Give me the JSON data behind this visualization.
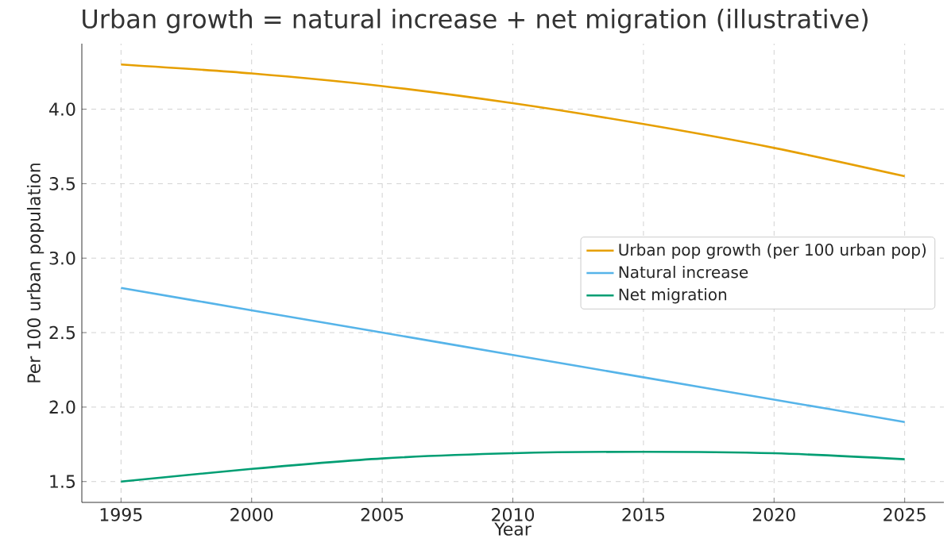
{
  "chart_data": {
    "type": "line",
    "title": "Urban growth = natural increase + net migration (illustrative)",
    "xlabel": "Year",
    "ylabel": "Per 100 urban population",
    "x": [
      1995,
      2000,
      2005,
      2010,
      2015,
      2020,
      2025
    ],
    "series": [
      {
        "name": "Urban pop growth (per 100 urban pop)",
        "color": "#e69f00",
        "values": [
          4.3,
          4.24,
          4.155,
          4.04,
          3.9,
          3.74,
          3.55
        ]
      },
      {
        "name": "Natural increase",
        "color": "#56b4e9",
        "values": [
          2.8,
          2.65,
          2.5,
          2.35,
          2.2,
          2.05,
          1.9
        ]
      },
      {
        "name": "Net migration",
        "color": "#009e73",
        "values": [
          1.5,
          1.585,
          1.655,
          1.69,
          1.7,
          1.69,
          1.65
        ]
      }
    ],
    "xlim": [
      1993.5,
      2026.5
    ],
    "ylim": [
      1.36,
      4.44
    ],
    "xticks": [
      1995,
      2000,
      2005,
      2010,
      2015,
      2020,
      2025
    ],
    "yticks": [
      {
        "value": 1.5,
        "label": "1.5"
      },
      {
        "value": 2.0,
        "label": "2.0"
      },
      {
        "value": 2.5,
        "label": "2.5"
      },
      {
        "value": 3.0,
        "label": "3.0"
      },
      {
        "value": 3.5,
        "label": "3.5"
      },
      {
        "value": 4.0,
        "label": "4.0"
      }
    ],
    "grid": true,
    "legend": "right",
    "marker": "none",
    "line_style": "solid"
  }
}
